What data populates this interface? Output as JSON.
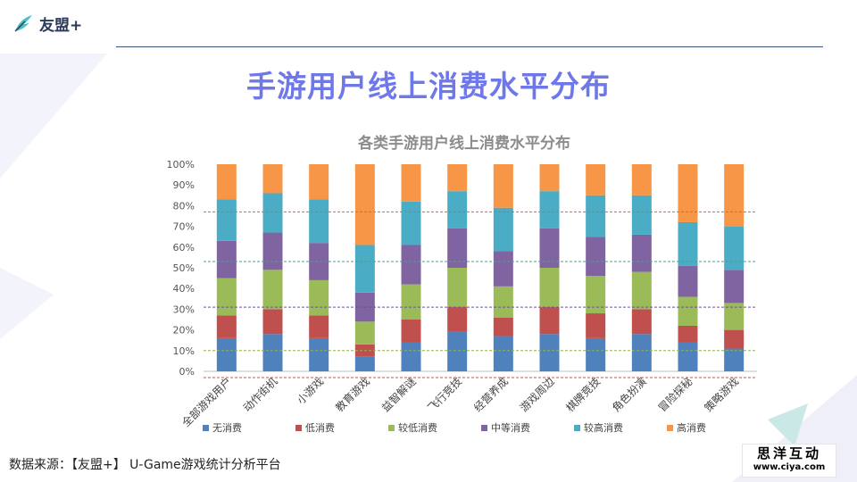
{
  "brand": {
    "name": "友盟+"
  },
  "page_title": "手游用户线上消费水平分布",
  "source_text": "数据来源：【友盟+】 U-Game游戏统计分析平台",
  "watermark": {
    "name": "思洋互动",
    "url": "www.ciya.com"
  },
  "colors": {
    "title": "#6f78e8",
    "series": [
      "#4f81bd",
      "#c0504d",
      "#9bbb59",
      "#8064a2",
      "#4bacc6",
      "#f79646"
    ]
  },
  "chart_data": {
    "type": "bar",
    "stacked": true,
    "title": "各类手游用户线上消费水平分布",
    "xlabel": "",
    "ylabel": "",
    "ylim": [
      0,
      100
    ],
    "yticks": [
      "0%",
      "10%",
      "20%",
      "30%",
      "40%",
      "50%",
      "60%",
      "70%",
      "80%",
      "90%",
      "100%"
    ],
    "legend_position": "bottom",
    "categories": [
      "全部游戏用户",
      "动作街机",
      "小游戏",
      "教育游戏",
      "益智解谜",
      "飞行竞技",
      "经营养成",
      "游戏周边",
      "棋牌竞技",
      "角色扮演",
      "冒险探秘",
      "策略游戏"
    ],
    "series": [
      {
        "name": "无消费",
        "values": [
          16,
          18,
          16,
          7,
          14,
          19,
          17,
          18,
          16,
          18,
          14,
          11
        ]
      },
      {
        "name": "低消费",
        "values": [
          11,
          12,
          11,
          6,
          11,
          12,
          9,
          13,
          12,
          12,
          8,
          9
        ]
      },
      {
        "name": "较低消费",
        "values": [
          18,
          19,
          17,
          11,
          17,
          19,
          15,
          19,
          18,
          18,
          14,
          13
        ]
      },
      {
        "name": "中等消费",
        "values": [
          18,
          18,
          18,
          14,
          19,
          19,
          17,
          19,
          19,
          18,
          15,
          16
        ]
      },
      {
        "name": "较高消费",
        "values": [
          20,
          19,
          21,
          23,
          21,
          18,
          21,
          18,
          20,
          19,
          21,
          21
        ]
      },
      {
        "name": "高消费",
        "values": [
          17,
          14,
          17,
          39,
          18,
          13,
          21,
          13,
          15,
          15,
          28,
          30
        ]
      }
    ],
    "reference_lines": [
      77,
      53,
      31,
      10,
      -3
    ]
  }
}
